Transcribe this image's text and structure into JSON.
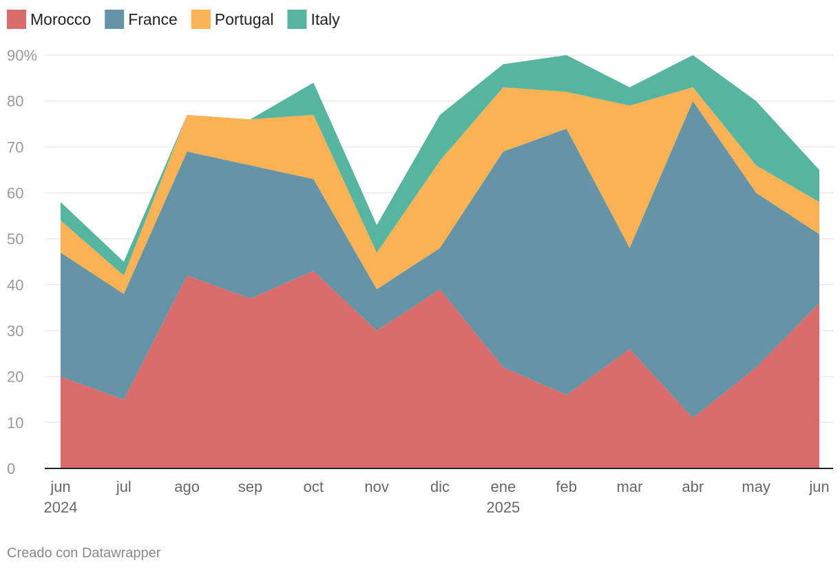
{
  "chart_data": {
    "type": "area",
    "stacked": true,
    "x": [
      "2024-06",
      "2024-07",
      "2024-08",
      "2024-09",
      "2024-10",
      "2024-11",
      "2024-12",
      "2025-01",
      "2025-02",
      "2025-03",
      "2025-04",
      "2025-05",
      "2025-06"
    ],
    "x_tick_labels": [
      "jun",
      "jul",
      "ago",
      "sep",
      "oct",
      "nov",
      "dic",
      "ene",
      "feb",
      "mar",
      "abr",
      "may",
      "jun"
    ],
    "x_year_labels": [
      {
        "index": 0,
        "label": "2024"
      },
      {
        "index": 7,
        "label": "2025"
      }
    ],
    "series": [
      {
        "name": "Morocco",
        "color": "#d96b6b",
        "values": [
          20,
          15,
          42,
          37,
          43,
          30,
          39,
          22,
          16,
          26,
          11,
          22,
          36
        ]
      },
      {
        "name": "France",
        "color": "#6494a6",
        "values": [
          27,
          23,
          27,
          29,
          20,
          9,
          9,
          47,
          58,
          22,
          69,
          38,
          15
        ]
      },
      {
        "name": "Portugal",
        "color": "#fab255",
        "values": [
          7,
          4,
          8,
          10,
          14,
          8,
          19,
          14,
          8,
          31,
          3,
          6,
          7
        ]
      },
      {
        "name": "Italy",
        "color": "#56b5a1",
        "values": [
          4,
          3,
          0,
          0,
          7,
          6,
          10,
          5,
          8,
          4,
          7,
          14,
          7
        ]
      }
    ],
    "y_ticks": [
      {
        "value": 0,
        "label": "0"
      },
      {
        "value": 10,
        "label": "10"
      },
      {
        "value": 20,
        "label": "20"
      },
      {
        "value": 30,
        "label": "30"
      },
      {
        "value": 40,
        "label": "40"
      },
      {
        "value": 50,
        "label": "50"
      },
      {
        "value": 60,
        "label": "60"
      },
      {
        "value": 70,
        "label": "70"
      },
      {
        "value": 80,
        "label": "80"
      },
      {
        "value": 90,
        "label": "90%"
      }
    ],
    "ylim": [
      0,
      90
    ],
    "grid": true,
    "legend": "top-left"
  },
  "footer": {
    "credit": "Creado con Datawrapper"
  }
}
